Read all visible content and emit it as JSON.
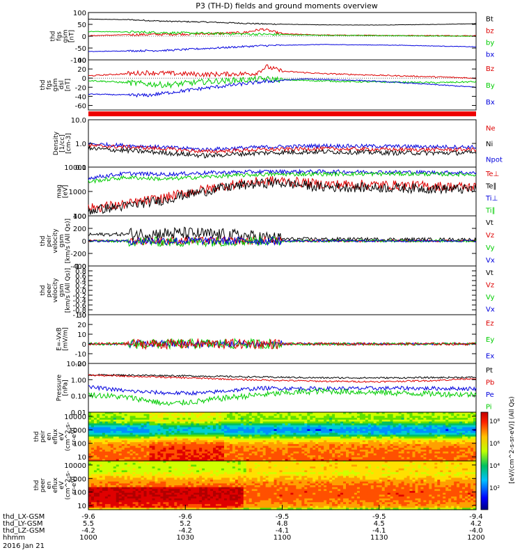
{
  "title": "P3 (TH-D) fields and ground moments overview",
  "chart_data": {
    "type": "line",
    "title": "P3 (TH-D) fields and ground moments overview",
    "panels": [
      {
        "ylabel": [
          "thd",
          "fgs",
          "gsm",
          "[nT]"
        ],
        "yticks": [
          "100",
          "50",
          "0",
          "-50",
          "-100"
        ],
        "ylim": [
          -100,
          100
        ],
        "scale": "linear",
        "zero_line": true,
        "legend": [
          {
            "label": "Bt",
            "color": "#000000"
          },
          {
            "label": "bz",
            "color": "#dd0000"
          },
          {
            "label": "by",
            "color": "#00cc00"
          },
          {
            "label": "bx",
            "color": "#0000dd"
          }
        ],
        "series": [
          {
            "color": "#000000",
            "t": [
              0,
              0.1,
              0.2,
              0.3,
              0.45,
              0.6,
              0.75,
              0.9,
              1.0
            ],
            "values": [
              72,
              70,
              63,
              60,
              52,
              48,
              47,
              50,
              53
            ],
            "noise": 2
          },
          {
            "color": "#dd0000",
            "t": [
              0,
              0.1,
              0.2,
              0.3,
              0.4,
              0.45,
              0.5,
              0.6,
              0.8,
              1.0
            ],
            "values": [
              2,
              6,
              8,
              10,
              15,
              30,
              10,
              5,
              3,
              2
            ],
            "noise": 4
          },
          {
            "color": "#00cc00",
            "t": [
              0,
              0.1,
              0.2,
              0.3,
              0.45,
              0.6,
              0.8,
              1.0
            ],
            "values": [
              20,
              18,
              15,
              12,
              8,
              4,
              2,
              0
            ],
            "noise": 4
          },
          {
            "color": "#0000dd",
            "t": [
              0,
              0.1,
              0.2,
              0.3,
              0.45,
              0.6,
              0.8,
              1.0
            ],
            "values": [
              -65,
              -62,
              -60,
              -52,
              -40,
              -35,
              -38,
              -45
            ],
            "noise": 3
          }
        ]
      },
      {
        "ylabel": [
          "thd",
          "fgs",
          "gsm",
          "dsl",
          "[nT]"
        ],
        "yticks": [
          "40",
          "20",
          "0",
          "-20",
          "-40",
          "-60"
        ],
        "ylim": [
          -70,
          40
        ],
        "scale": "linear",
        "zero_line": true,
        "legend": [
          {
            "label": "Bz",
            "color": "#dd0000"
          },
          {
            "label": "By",
            "color": "#00cc00"
          },
          {
            "label": "Bx",
            "color": "#0000dd"
          }
        ],
        "series": [
          {
            "color": "#dd0000",
            "t": [
              0,
              0.15,
              0.3,
              0.43,
              0.46,
              0.5,
              0.6,
              0.8,
              1.0
            ],
            "values": [
              5,
              12,
              8,
              10,
              25,
              15,
              10,
              5,
              0
            ],
            "noise": 4
          },
          {
            "color": "#00cc00",
            "t": [
              0,
              0.1,
              0.2,
              0.3,
              0.45,
              0.55,
              0.7,
              0.9,
              1.0
            ],
            "values": [
              -5,
              -10,
              -15,
              -8,
              -2,
              -5,
              -8,
              -10,
              -8
            ],
            "noise": 5
          },
          {
            "color": "#0000dd",
            "t": [
              0,
              0.15,
              0.3,
              0.45,
              0.55,
              0.7,
              0.85,
              1.0
            ],
            "values": [
              -35,
              -38,
              -22,
              -8,
              -2,
              -5,
              -12,
              -20
            ],
            "noise": 3
          }
        ]
      },
      {
        "ylabel": [
          "Density",
          "[1/cc]",
          "[cm-3]"
        ],
        "yticks": [
          "10.0",
          "1.0",
          "0.1"
        ],
        "ylim": [
          0.1,
          10
        ],
        "scale": "log",
        "legend": [
          {
            "label": "Ne",
            "color": "#dd0000"
          },
          {
            "label": "Ni",
            "color": "#000000"
          },
          {
            "label": "Npot",
            "color": "#0000dd"
          }
        ],
        "series": [
          {
            "color": "#0000dd",
            "t": [
              0,
              0.15,
              0.3,
              0.45,
              0.6,
              0.8,
              1.0
            ],
            "values": [
              0.95,
              0.75,
              0.55,
              0.7,
              0.8,
              0.75,
              0.7
            ],
            "noise": 0.08
          },
          {
            "color": "#dd0000",
            "t": [
              0,
              0.15,
              0.3,
              0.45,
              0.6,
              0.8,
              1.0
            ],
            "values": [
              0.8,
              0.65,
              0.45,
              0.55,
              0.6,
              0.55,
              0.55
            ],
            "noise": 0.08
          },
          {
            "color": "#000000",
            "t": [
              0,
              0.15,
              0.3,
              0.45,
              0.6,
              0.8,
              1.0
            ],
            "values": [
              0.6,
              0.45,
              0.3,
              0.4,
              0.45,
              0.4,
              0.4
            ],
            "noise": 0.1
          }
        ]
      },
      {
        "ylabel": [
          "mag",
          "[eV]"
        ],
        "yticks": [
          "10000",
          "1000",
          "100"
        ],
        "ylim": [
          100,
          10000
        ],
        "scale": "log",
        "legend": [
          {
            "label": "Te⊥",
            "color": "#dd0000"
          },
          {
            "label": "Te∥",
            "color": "#000000"
          },
          {
            "label": "Ti⊥",
            "color": "#0000dd"
          },
          {
            "label": "Ti∥",
            "color": "#00cc00"
          }
        ],
        "series": [
          {
            "color": "#0000dd",
            "t": [
              0,
              0.1,
              0.2,
              0.3,
              0.45,
              0.6,
              0.8,
              1.0
            ],
            "values": [
              3500,
              5500,
              5000,
              5800,
              6500,
              6500,
              6200,
              5800
            ],
            "noise": 0.08
          },
          {
            "color": "#00cc00",
            "t": [
              0,
              0.1,
              0.2,
              0.3,
              0.45,
              0.6,
              0.8,
              1.0
            ],
            "values": [
              2500,
              3800,
              3200,
              4000,
              5000,
              5200,
              5300,
              5000
            ],
            "noise": 0.08
          },
          {
            "color": "#dd0000",
            "t": [
              0,
              0.1,
              0.2,
              0.3,
              0.4,
              0.48,
              0.6,
              0.8,
              1.0
            ],
            "values": [
              200,
              300,
              550,
              1200,
              2200,
              2800,
              2000,
              1800,
              1500
            ],
            "noise": 0.2
          },
          {
            "color": "#000000",
            "t": [
              0,
              0.1,
              0.2,
              0.3,
              0.4,
              0.48,
              0.6,
              0.8,
              1.0
            ],
            "values": [
              160,
              250,
              450,
              1000,
              1800,
              2300,
              1500,
              1400,
              1200
            ],
            "noise": 0.2
          }
        ]
      },
      {
        "ylabel": [
          "thd",
          "peir",
          "velocity",
          "gsm",
          "[km/s (All Qs)]"
        ],
        "yticks": [
          "400",
          "200",
          "0",
          "-200",
          "-400"
        ],
        "ylim": [
          -400,
          400
        ],
        "scale": "linear",
        "zero_line": true,
        "legend": [
          {
            "label": "Vt",
            "color": "#000000"
          },
          {
            "label": "Vz",
            "color": "#dd0000"
          },
          {
            "label": "Vy",
            "color": "#00cc00"
          },
          {
            "label": "Vx",
            "color": "#0000dd"
          }
        ],
        "series": [
          {
            "color": "#000000",
            "t": [
              0,
              0.25,
              0.4,
              0.5,
              1.0
            ],
            "values": [
              100,
              120,
              80,
              30,
              20
            ],
            "noise": 80
          },
          {
            "color": "#dd0000",
            "t": [
              0,
              0.25,
              0.4,
              0.5,
              1.0
            ],
            "values": [
              0,
              0,
              0,
              0,
              0
            ],
            "noise": 50
          },
          {
            "color": "#00cc00",
            "t": [
              0,
              0.25,
              0.4,
              0.5,
              1.0
            ],
            "values": [
              0,
              -20,
              0,
              0,
              0
            ],
            "noise": 60
          },
          {
            "color": "#0000dd",
            "t": [
              0,
              0.25,
              0.4,
              0.5,
              1.0
            ],
            "values": [
              0,
              0,
              0,
              0,
              0
            ],
            "noise": 50
          }
        ]
      },
      {
        "ylabel": [
          "thd",
          "peer",
          "velocity",
          "gsm",
          "[km/s (All Qs)]"
        ],
        "yticks": [
          "1.0",
          "0.8",
          "0.6",
          "0.4",
          "0.2",
          "0.0",
          "-0.2",
          "-0.4",
          "-0.6",
          "-0.8",
          "-1.0"
        ],
        "ylim": [
          -1,
          1
        ],
        "scale": "linear",
        "legend": [
          {
            "label": "Vt",
            "color": "#000000"
          },
          {
            "label": "Vz",
            "color": "#dd0000"
          },
          {
            "label": "Vy",
            "color": "#00cc00"
          },
          {
            "label": "Vx",
            "color": "#0000dd"
          }
        ],
        "series": []
      },
      {
        "ylabel": [
          "E=-VxB",
          "[mV/m]"
        ],
        "yticks": [
          "30",
          "20",
          "10",
          "0",
          "-10",
          "-20"
        ],
        "ylim": [
          -20,
          30
        ],
        "scale": "linear",
        "zero_line": true,
        "legend": [
          {
            "label": "Ez",
            "color": "#dd0000"
          },
          {
            "label": "Ey",
            "color": "#00cc00"
          },
          {
            "label": "Ex",
            "color": "#0000dd"
          }
        ],
        "series": [
          {
            "color": "#0000dd",
            "t": [
              0,
              0.3,
              0.5,
              1.0
            ],
            "values": [
              0,
              0,
              0,
              0
            ],
            "noise": 3
          },
          {
            "color": "#00cc00",
            "t": [
              0,
              0.3,
              0.5,
              1.0
            ],
            "values": [
              0,
              0,
              0,
              0
            ],
            "noise": 4
          },
          {
            "color": "#dd0000",
            "t": [
              0,
              0.3,
              0.5,
              1.0
            ],
            "values": [
              0,
              0,
              0,
              0
            ],
            "noise": 4
          }
        ]
      },
      {
        "ylabel": [
          "Pressure",
          "[nPa]"
        ],
        "yticks": [
          "10.00",
          "1.00",
          "0.10",
          "0.01"
        ],
        "ylim": [
          0.01,
          10
        ],
        "scale": "log",
        "legend": [
          {
            "label": "Pt",
            "color": "#000000"
          },
          {
            "label": "Pb",
            "color": "#dd0000"
          },
          {
            "label": "Pe",
            "color": "#0000dd"
          },
          {
            "label": "Pi",
            "color": "#00cc00"
          }
        ],
        "series": [
          {
            "color": "#000000",
            "t": [
              0,
              0.2,
              0.4,
              0.6,
              0.8,
              1.0
            ],
            "values": [
              2.0,
              1.8,
              1.5,
              1.3,
              1.3,
              1.4
            ],
            "noise": 0.05
          },
          {
            "color": "#dd0000",
            "t": [
              0,
              0.2,
              0.4,
              0.6,
              0.75,
              0.9,
              1.0
            ],
            "values": [
              1.9,
              1.4,
              1.0,
              0.8,
              0.75,
              0.9,
              1.2
            ],
            "noise": 0.05
          },
          {
            "color": "#0000dd",
            "t": [
              0,
              0.1,
              0.2,
              0.3,
              0.45,
              0.6,
              0.8,
              1.0
            ],
            "values": [
              0.35,
              0.2,
              0.15,
              0.15,
              0.3,
              0.28,
              0.3,
              0.28
            ],
            "noise": 0.12
          },
          {
            "color": "#00cc00",
            "t": [
              0,
              0.1,
              0.2,
              0.3,
              0.45,
              0.6,
              0.8,
              1.0
            ],
            "values": [
              0.12,
              0.08,
              0.03,
              0.05,
              0.12,
              0.2,
              0.15,
              0.12
            ],
            "noise": 0.18
          }
        ]
      },
      {
        "type": "spectrogram",
        "ylabel": [
          "thd",
          "peir",
          "en",
          "eflux",
          "eV",
          "(cm^2-s-",
          "sr-eV)"
        ],
        "yticks": [
          "10000",
          "1000",
          "100",
          "10"
        ],
        "ylim": [
          5,
          20000
        ],
        "scale": "log"
      },
      {
        "type": "spectrogram",
        "ylabel": [
          "thd",
          "peer",
          "en",
          "eflux",
          "eV",
          "(cm^2-s-",
          "sr-eV)"
        ],
        "yticks": [
          "10000",
          "1000",
          "100",
          "10"
        ],
        "ylim": [
          5,
          20000
        ],
        "scale": "log"
      }
    ],
    "colorbar": {
      "ticks": [
        "10⁸",
        "10⁶",
        "10⁴",
        "10²"
      ],
      "label": "[eV/(cm^2-s-sr-eV)] (All Qs)"
    },
    "x_axis": {
      "rows": [
        {
          "label": "thd_LX-GSM",
          "values": [
            "-9.6",
            "-9.6",
            "-9.5",
            "-9.5",
            "-9.4"
          ]
        },
        {
          "label": "thd_LY-GSM",
          "values": [
            "5.5",
            "5.2",
            "4.8",
            "4.5",
            "4.2"
          ]
        },
        {
          "label": "thd_LZ-GSM",
          "values": [
            "-4.2",
            "-4.2",
            "-4.1",
            "-4.1",
            "-4.0"
          ]
        },
        {
          "label": "hhmm",
          "values": [
            "1000",
            "1030",
            "1100",
            "1130",
            "1200"
          ]
        }
      ],
      "date": "2016 Jan 21"
    }
  }
}
